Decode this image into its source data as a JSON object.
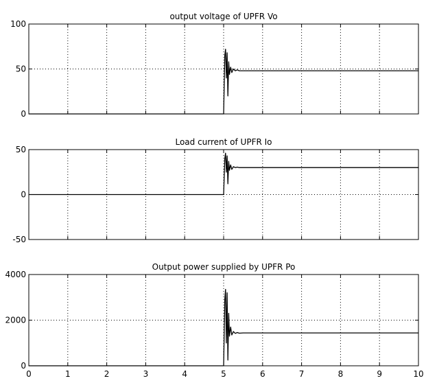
{
  "chart_data": [
    {
      "type": "line",
      "title": "output voltage of UPFR Vo",
      "xlim": [
        0,
        10
      ],
      "ylim": [
        0,
        100
      ],
      "xticks": [
        0,
        1,
        2,
        3,
        4,
        5,
        6,
        7,
        8,
        9,
        10
      ],
      "yticks": [
        0,
        50,
        100
      ],
      "show_xtick_labels": false,
      "grid": true,
      "line_color": "#000000",
      "series": [
        {
          "x": [
            0,
            4.98,
            5.0,
            5.03,
            5.05,
            5.07,
            5.09,
            5.11,
            5.13,
            5.15,
            5.18,
            5.21,
            5.25,
            5.3,
            5.35,
            5.4,
            5.5,
            10
          ],
          "y": [
            0,
            0,
            0,
            65,
            72,
            40,
            68,
            20,
            58,
            44,
            52,
            46,
            50,
            48,
            49,
            48,
            48,
            48
          ]
        }
      ]
    },
    {
      "type": "line",
      "title": "Load current of UPFR Io",
      "xlim": [
        0,
        10
      ],
      "ylim": [
        -50,
        50
      ],
      "xticks": [
        0,
        1,
        2,
        3,
        4,
        5,
        6,
        7,
        8,
        9,
        10
      ],
      "yticks": [
        -50,
        0,
        50
      ],
      "show_xtick_labels": false,
      "grid": true,
      "line_color": "#000000",
      "series": [
        {
          "x": [
            0,
            4.98,
            5.0,
            5.03,
            5.05,
            5.07,
            5.09,
            5.11,
            5.13,
            5.15,
            5.18,
            5.21,
            5.25,
            5.3,
            5.35,
            5.4,
            5.5,
            10
          ],
          "y": [
            0,
            0,
            0,
            40,
            46,
            25,
            43,
            12,
            37,
            27,
            33,
            28,
            31,
            30,
            30.5,
            30,
            30,
            30
          ]
        }
      ]
    },
    {
      "type": "line",
      "title": "Output power supplied by UPFR Po",
      "xlim": [
        0,
        10
      ],
      "ylim": [
        0,
        4000
      ],
      "xticks": [
        0,
        1,
        2,
        3,
        4,
        5,
        6,
        7,
        8,
        9,
        10
      ],
      "yticks": [
        0,
        2000,
        4000
      ],
      "show_xtick_labels": true,
      "grid": true,
      "line_color": "#000000",
      "series": [
        {
          "x": [
            0,
            4.98,
            5.0,
            5.03,
            5.05,
            5.07,
            5.09,
            5.11,
            5.13,
            5.15,
            5.18,
            5.21,
            5.25,
            5.3,
            5.35,
            5.4,
            5.5,
            10
          ],
          "y": [
            0,
            0,
            0,
            2900,
            3350,
            1000,
            3200,
            250,
            2300,
            1300,
            1700,
            1350,
            1500,
            1420,
            1460,
            1430,
            1440,
            1440
          ]
        }
      ]
    }
  ]
}
